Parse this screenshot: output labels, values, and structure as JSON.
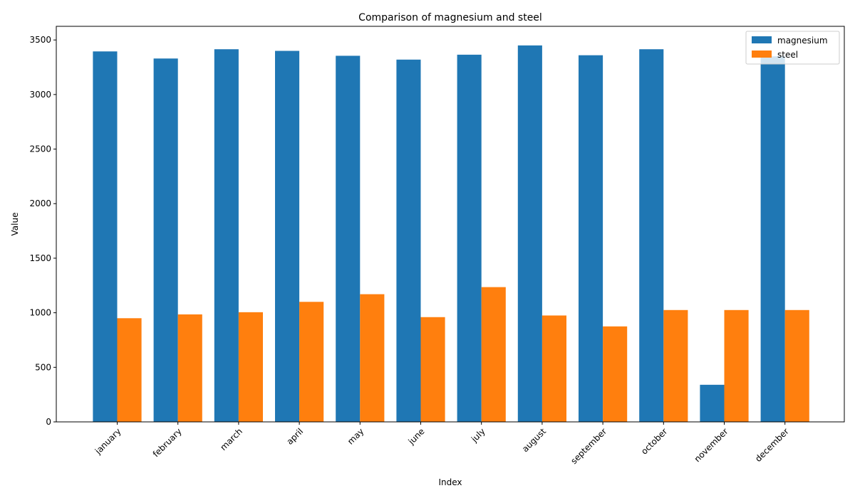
{
  "chart_data": {
    "type": "bar",
    "title": "Comparison of magnesium and steel",
    "xlabel": "Index",
    "ylabel": "Value",
    "categories": [
      "january",
      "february",
      "march",
      "april",
      "may",
      "june",
      "july",
      "august",
      "september",
      "october",
      "november",
      "december"
    ],
    "series": [
      {
        "name": "magnesium",
        "color": "#1f77b4",
        "values": [
          3395,
          3330,
          3415,
          3400,
          3355,
          3320,
          3365,
          3450,
          3360,
          3415,
          340,
          3350
        ]
      },
      {
        "name": "steel",
        "color": "#ff7f0e",
        "values": [
          950,
          985,
          1005,
          1100,
          1170,
          960,
          1235,
          975,
          875,
          1025,
          1025,
          1025
        ]
      }
    ],
    "ylim": [
      0,
      3625
    ],
    "yticks": [
      0,
      500,
      1000,
      1500,
      2000,
      2500,
      3000,
      3500
    ],
    "grid": false,
    "legend": "top-right"
  }
}
